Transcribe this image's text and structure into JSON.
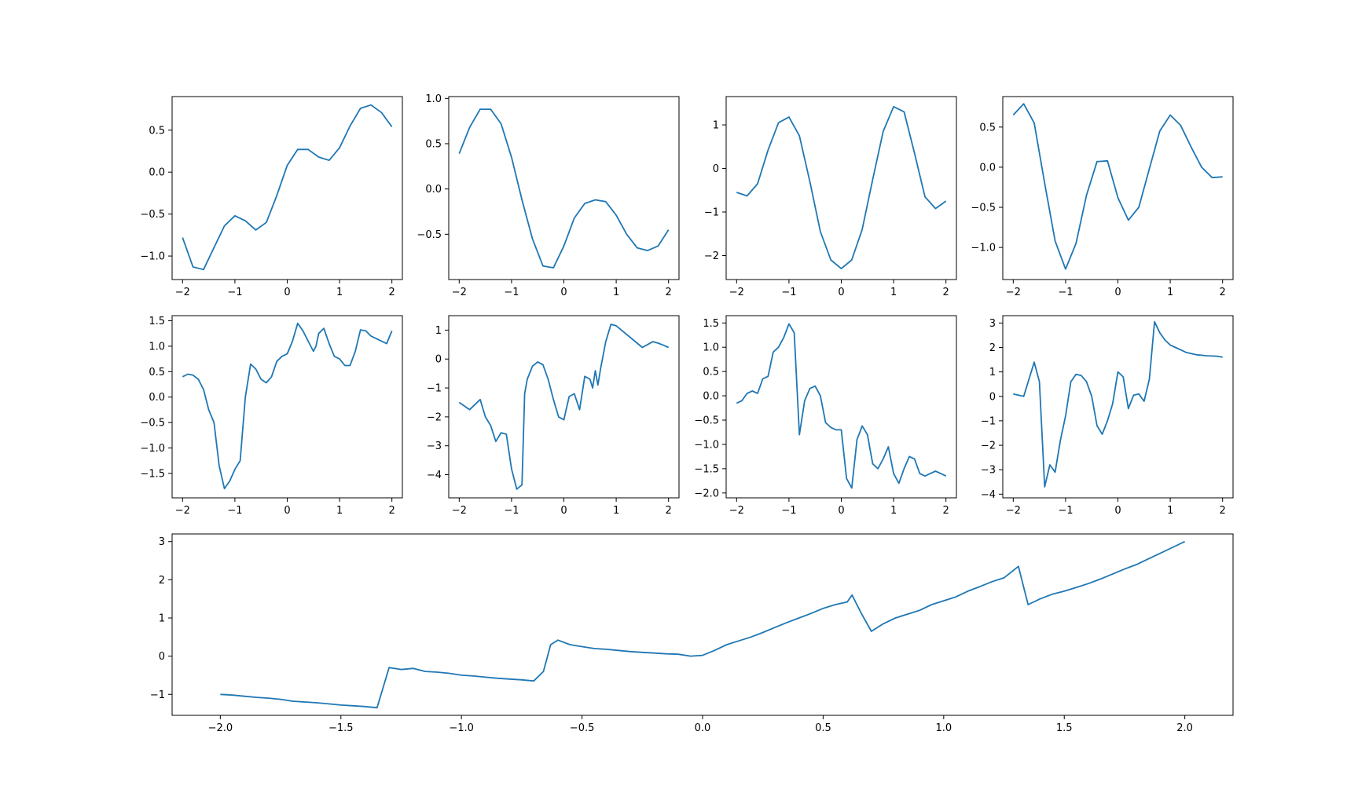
{
  "figure": {
    "line_color": "#1f77b4",
    "axes_color": "#000000",
    "background": "#ffffff"
  },
  "chart_data": [
    {
      "type": "line",
      "panel": "row1-col1",
      "x": [
        -2.0,
        -1.8,
        -1.6,
        -1.4,
        -1.2,
        -1.0,
        -0.8,
        -0.6,
        -0.4,
        -0.2,
        0.0,
        0.2,
        0.4,
        0.6,
        0.8,
        1.0,
        1.2,
        1.4,
        1.6,
        1.8,
        2.0
      ],
      "y": [
        -0.78,
        -1.13,
        -1.16,
        -0.9,
        -0.64,
        -0.52,
        -0.58,
        -0.69,
        -0.6,
        -0.28,
        0.08,
        0.27,
        0.27,
        0.18,
        0.14,
        0.29,
        0.55,
        0.76,
        0.8,
        0.71,
        0.54
      ],
      "xlim": [
        -2.2,
        2.2
      ],
      "ylim": [
        -1.28,
        0.9
      ],
      "xticks": [
        -2,
        -1,
        0,
        1,
        2
      ],
      "xtick_labels": [
        "−2",
        "−1",
        "0",
        "1",
        "2"
      ],
      "yticks": [
        -1.0,
        -0.5,
        0.0,
        0.5
      ],
      "ytick_labels": [
        "−1.0",
        "−0.5",
        "0.0",
        "0.5"
      ],
      "grid": false,
      "legend": false
    },
    {
      "type": "line",
      "panel": "row1-col2",
      "x": [
        -2.0,
        -1.8,
        -1.6,
        -1.4,
        -1.2,
        -1.0,
        -0.8,
        -0.6,
        -0.4,
        -0.2,
        0.0,
        0.2,
        0.4,
        0.6,
        0.8,
        1.0,
        1.2,
        1.4,
        1.6,
        1.8,
        2.0
      ],
      "y": [
        0.39,
        0.68,
        0.88,
        0.88,
        0.72,
        0.35,
        -0.12,
        -0.55,
        -0.85,
        -0.87,
        -0.63,
        -0.32,
        -0.16,
        -0.12,
        -0.14,
        -0.29,
        -0.5,
        -0.65,
        -0.68,
        -0.63,
        -0.45
      ],
      "xlim": [
        -2.2,
        2.2
      ],
      "ylim": [
        -1.0,
        1.02
      ],
      "xticks": [
        -2,
        -1,
        0,
        1,
        2
      ],
      "xtick_labels": [
        "−2",
        "−1",
        "0",
        "1",
        "2"
      ],
      "yticks": [
        -0.5,
        0.0,
        0.5,
        1.0
      ],
      "ytick_labels": [
        "−0.5",
        "0.0",
        "0.5",
        "1.0"
      ],
      "grid": false,
      "legend": false
    },
    {
      "type": "line",
      "panel": "row1-col3",
      "x": [
        -2.0,
        -1.8,
        -1.6,
        -1.4,
        -1.2,
        -1.0,
        -0.8,
        -0.6,
        -0.4,
        -0.2,
        0.0,
        0.2,
        0.4,
        0.6,
        0.8,
        1.0,
        1.2,
        1.4,
        1.6,
        1.8,
        2.0
      ],
      "y": [
        -0.55,
        -0.63,
        -0.35,
        0.42,
        1.05,
        1.18,
        0.75,
        -0.3,
        -1.45,
        -2.1,
        -2.3,
        -2.1,
        -1.4,
        -0.25,
        0.85,
        1.42,
        1.3,
        0.35,
        -0.65,
        -0.92,
        -0.75
      ],
      "xlim": [
        -2.2,
        2.2
      ],
      "ylim": [
        -2.55,
        1.65
      ],
      "xticks": [
        -2,
        -1,
        0,
        1,
        2
      ],
      "xtick_labels": [
        "−2",
        "−1",
        "0",
        "1",
        "2"
      ],
      "yticks": [
        -2,
        -1,
        0,
        1
      ],
      "ytick_labels": [
        "−2",
        "−1",
        "0",
        "1"
      ],
      "grid": false,
      "legend": false
    },
    {
      "type": "line",
      "panel": "row1-col4",
      "x": [
        -2.0,
        -1.8,
        -1.6,
        -1.4,
        -1.2,
        -1.0,
        -0.8,
        -0.6,
        -0.4,
        -0.2,
        0.0,
        0.2,
        0.4,
        0.6,
        0.8,
        1.0,
        1.2,
        1.4,
        1.6,
        1.8,
        2.0
      ],
      "y": [
        0.65,
        0.79,
        0.55,
        -0.2,
        -0.92,
        -1.27,
        -0.95,
        -0.35,
        0.07,
        0.08,
        -0.38,
        -0.66,
        -0.5,
        -0.02,
        0.45,
        0.65,
        0.52,
        0.25,
        0.0,
        -0.13,
        -0.12
      ],
      "xlim": [
        -2.2,
        2.2
      ],
      "ylim": [
        -1.4,
        0.88
      ],
      "xticks": [
        -2,
        -1,
        0,
        1,
        2
      ],
      "xtick_labels": [
        "−2",
        "−1",
        "0",
        "1",
        "2"
      ],
      "yticks": [
        -1.0,
        -0.5,
        0.0,
        0.5
      ],
      "ytick_labels": [
        "−1.0",
        "−0.5",
        "0.0",
        "0.5"
      ],
      "grid": false,
      "legend": false
    },
    {
      "type": "line",
      "panel": "row2-col1",
      "x": [
        -2.0,
        -1.9,
        -1.8,
        -1.7,
        -1.6,
        -1.5,
        -1.4,
        -1.3,
        -1.2,
        -1.1,
        -1.0,
        -0.9,
        -0.8,
        -0.7,
        -0.6,
        -0.5,
        -0.4,
        -0.3,
        -0.2,
        -0.1,
        0.0,
        0.1,
        0.2,
        0.3,
        0.4,
        0.5,
        0.55,
        0.6,
        0.7,
        0.8,
        0.9,
        1.0,
        1.1,
        1.2,
        1.3,
        1.4,
        1.5,
        1.6,
        1.7,
        1.8,
        1.9,
        2.0
      ],
      "y": [
        0.4,
        0.45,
        0.43,
        0.35,
        0.15,
        -0.25,
        -0.5,
        -1.35,
        -1.8,
        -1.65,
        -1.42,
        -1.25,
        0.0,
        0.65,
        0.55,
        0.35,
        0.28,
        0.4,
        0.7,
        0.8,
        0.85,
        1.1,
        1.45,
        1.3,
        1.1,
        0.9,
        1.0,
        1.25,
        1.35,
        1.05,
        0.8,
        0.75,
        0.62,
        0.62,
        0.9,
        1.32,
        1.3,
        1.2,
        1.15,
        1.1,
        1.05,
        1.3
      ],
      "xlim": [
        -2.2,
        2.2
      ],
      "ylim": [
        -1.98,
        1.6
      ],
      "xticks": [
        -2,
        -1,
        0,
        1,
        2
      ],
      "xtick_labels": [
        "−2",
        "−1",
        "0",
        "1",
        "2"
      ],
      "yticks": [
        -1.5,
        -1.0,
        -0.5,
        0.0,
        0.5,
        1.0,
        1.5
      ],
      "ytick_labels": [
        "−1.5",
        "−1.0",
        "−0.5",
        "0.0",
        "0.5",
        "1.0",
        "1.5"
      ],
      "grid": false,
      "legend": false
    },
    {
      "type": "line",
      "panel": "row2-col2",
      "x": [
        -2.0,
        -1.8,
        -1.6,
        -1.5,
        -1.4,
        -1.3,
        -1.2,
        -1.1,
        -1.0,
        -0.9,
        -0.8,
        -0.75,
        -0.7,
        -0.6,
        -0.5,
        -0.4,
        -0.3,
        -0.2,
        -0.1,
        0.0,
        0.1,
        0.2,
        0.3,
        0.4,
        0.5,
        0.55,
        0.6,
        0.65,
        0.7,
        0.8,
        0.9,
        1.0,
        1.1,
        1.2,
        1.3,
        1.4,
        1.5,
        1.6,
        1.7,
        1.8,
        1.9,
        2.0
      ],
      "y": [
        -1.5,
        -1.75,
        -1.4,
        -2.0,
        -2.3,
        -2.85,
        -2.55,
        -2.6,
        -3.8,
        -4.5,
        -4.35,
        -1.2,
        -0.7,
        -0.25,
        -0.1,
        -0.2,
        -0.7,
        -1.4,
        -2.0,
        -2.1,
        -1.3,
        -1.2,
        -1.75,
        -0.6,
        -0.7,
        -1.0,
        -0.4,
        -0.9,
        -0.35,
        0.6,
        1.2,
        1.15,
        1.0,
        0.85,
        0.7,
        0.55,
        0.4,
        0.5,
        0.6,
        0.55,
        0.48,
        0.4
      ],
      "xlim": [
        -2.2,
        2.2
      ],
      "ylim": [
        -4.8,
        1.5
      ],
      "xticks": [
        -2,
        -1,
        0,
        1,
        2
      ],
      "xtick_labels": [
        "−2",
        "−1",
        "0",
        "1",
        "2"
      ],
      "yticks": [
        -4,
        -3,
        -2,
        -1,
        0,
        1
      ],
      "ytick_labels": [
        "−4",
        "−3",
        "−2",
        "−1",
        "0",
        "1"
      ],
      "grid": false,
      "legend": false
    },
    {
      "type": "line",
      "panel": "row2-col3",
      "x": [
        -2.0,
        -1.9,
        -1.8,
        -1.7,
        -1.6,
        -1.5,
        -1.4,
        -1.3,
        -1.2,
        -1.1,
        -1.0,
        -0.9,
        -0.8,
        -0.7,
        -0.6,
        -0.5,
        -0.4,
        -0.3,
        -0.2,
        -0.1,
        0.0,
        0.1,
        0.2,
        0.3,
        0.4,
        0.5,
        0.55,
        0.6,
        0.7,
        0.8,
        0.9,
        1.0,
        1.1,
        1.2,
        1.3,
        1.4,
        1.5,
        1.6,
        1.7,
        1.8,
        1.9,
        2.0
      ],
      "y": [
        -0.15,
        -0.1,
        0.05,
        0.1,
        0.05,
        0.35,
        0.4,
        0.9,
        1.0,
        1.2,
        1.48,
        1.3,
        -0.8,
        -0.1,
        0.15,
        0.2,
        0.0,
        -0.55,
        -0.65,
        -0.7,
        -0.7,
        -1.7,
        -1.9,
        -0.9,
        -0.62,
        -0.8,
        -1.1,
        -1.4,
        -1.5,
        -1.3,
        -1.05,
        -1.6,
        -1.8,
        -1.5,
        -1.25,
        -1.3,
        -1.6,
        -1.65,
        -1.6,
        -1.55,
        -1.6,
        -1.65
      ],
      "xlim": [
        -2.2,
        2.2
      ],
      "ylim": [
        -2.1,
        1.65
      ],
      "xticks": [
        -2,
        -1,
        0,
        1,
        2
      ],
      "xtick_labels": [
        "−2",
        "−1",
        "0",
        "1",
        "2"
      ],
      "yticks": [
        -2.0,
        -1.5,
        -1.0,
        -0.5,
        0.0,
        0.5,
        1.0,
        1.5
      ],
      "ytick_labels": [
        "−2.0",
        "−1.5",
        "−1.0",
        "−0.5",
        "0.0",
        "0.5",
        "1.0",
        "1.5"
      ],
      "grid": false,
      "legend": false
    },
    {
      "type": "line",
      "panel": "row2-col4",
      "x": [
        -2.0,
        -1.9,
        -1.8,
        -1.7,
        -1.6,
        -1.5,
        -1.4,
        -1.3,
        -1.2,
        -1.1,
        -1.0,
        -0.9,
        -0.8,
        -0.7,
        -0.6,
        -0.5,
        -0.4,
        -0.3,
        -0.2,
        -0.1,
        0.0,
        0.1,
        0.2,
        0.3,
        0.4,
        0.5,
        0.6,
        0.7,
        0.8,
        0.9,
        1.0,
        1.1,
        1.2,
        1.3,
        1.4,
        1.5,
        1.6,
        1.7,
        1.8,
        1.9,
        2.0
      ],
      "y": [
        0.1,
        0.05,
        0.0,
        0.7,
        1.4,
        0.6,
        -3.7,
        -2.8,
        -3.1,
        -1.8,
        -0.8,
        0.6,
        0.9,
        0.85,
        0.6,
        0.0,
        -1.2,
        -1.55,
        -1.0,
        -0.3,
        1.0,
        0.8,
        -0.5,
        0.05,
        0.1,
        -0.2,
        0.7,
        3.05,
        2.6,
        2.3,
        2.1,
        2.0,
        1.9,
        1.8,
        1.75,
        1.7,
        1.68,
        1.66,
        1.65,
        1.64,
        1.6
      ],
      "xlim": [
        -2.2,
        2.2
      ],
      "ylim": [
        -4.15,
        3.3
      ],
      "xticks": [
        -2,
        -1,
        0,
        1,
        2
      ],
      "xtick_labels": [
        "−2",
        "−1",
        "0",
        "1",
        "2"
      ],
      "yticks": [
        -4,
        -3,
        -2,
        -1,
        0,
        1,
        2,
        3
      ],
      "ytick_labels": [
        "−4",
        "−3",
        "−2",
        "−1",
        "0",
        "1",
        "2",
        "3"
      ],
      "grid": false,
      "legend": false
    },
    {
      "type": "line",
      "panel": "row3-wide",
      "x": [
        -2.0,
        -1.95,
        -1.9,
        -1.85,
        -1.8,
        -1.75,
        -1.7,
        -1.65,
        -1.6,
        -1.55,
        -1.5,
        -1.45,
        -1.4,
        -1.35,
        -1.3,
        -1.25,
        -1.2,
        -1.15,
        -1.1,
        -1.05,
        -1.0,
        -0.95,
        -0.9,
        -0.85,
        -0.8,
        -0.75,
        -0.7,
        -0.66,
        -0.63,
        -0.6,
        -0.55,
        -0.5,
        -0.45,
        -0.4,
        -0.35,
        -0.3,
        -0.25,
        -0.2,
        -0.15,
        -0.1,
        -0.05,
        0.0,
        0.05,
        0.1,
        0.15,
        0.2,
        0.25,
        0.3,
        0.35,
        0.4,
        0.45,
        0.5,
        0.55,
        0.6,
        0.62,
        0.66,
        0.7,
        0.75,
        0.8,
        0.85,
        0.9,
        0.95,
        1.0,
        1.05,
        1.1,
        1.15,
        1.2,
        1.25,
        1.31,
        1.35,
        1.4,
        1.45,
        1.5,
        1.55,
        1.6,
        1.65,
        1.7,
        1.75,
        1.8,
        1.85,
        1.9,
        1.95,
        2.0
      ],
      "y": [
        -1.0,
        -1.02,
        -1.05,
        -1.08,
        -1.1,
        -1.13,
        -1.18,
        -1.2,
        -1.22,
        -1.25,
        -1.28,
        -1.3,
        -1.32,
        -1.35,
        -0.3,
        -0.35,
        -0.32,
        -0.4,
        -0.42,
        -0.45,
        -0.5,
        -0.52,
        -0.55,
        -0.58,
        -0.6,
        -0.62,
        -0.65,
        -0.4,
        0.3,
        0.42,
        0.3,
        0.25,
        0.2,
        0.18,
        0.15,
        0.12,
        0.1,
        0.08,
        0.06,
        0.05,
        0.0,
        0.02,
        0.15,
        0.3,
        0.4,
        0.5,
        0.62,
        0.75,
        0.88,
        1.0,
        1.12,
        1.25,
        1.35,
        1.42,
        1.6,
        1.1,
        0.65,
        0.85,
        1.0,
        1.1,
        1.2,
        1.35,
        1.45,
        1.55,
        1.7,
        1.82,
        1.95,
        2.05,
        2.35,
        1.35,
        1.5,
        1.62,
        1.7,
        1.8,
        1.9,
        2.02,
        2.15,
        2.28,
        2.4,
        2.55,
        2.7,
        2.85,
        3.0
      ]
    }
  ],
  "bottom_axis": {
    "xlim": [
      -2.2,
      2.2
    ],
    "ylim": [
      -1.55,
      3.2
    ],
    "xticks": [
      -2.0,
      -1.5,
      -1.0,
      -0.5,
      0.0,
      0.5,
      1.0,
      1.5,
      2.0
    ],
    "xtick_labels": [
      "−2.0",
      "−1.5",
      "−1.0",
      "−0.5",
      "0.0",
      "0.5",
      "1.0",
      "1.5",
      "2.0"
    ],
    "yticks": [
      -1,
      0,
      1,
      2,
      3
    ],
    "ytick_labels": [
      "−1",
      "0",
      "1",
      "2",
      "3"
    ],
    "grid": false,
    "legend": false
  }
}
